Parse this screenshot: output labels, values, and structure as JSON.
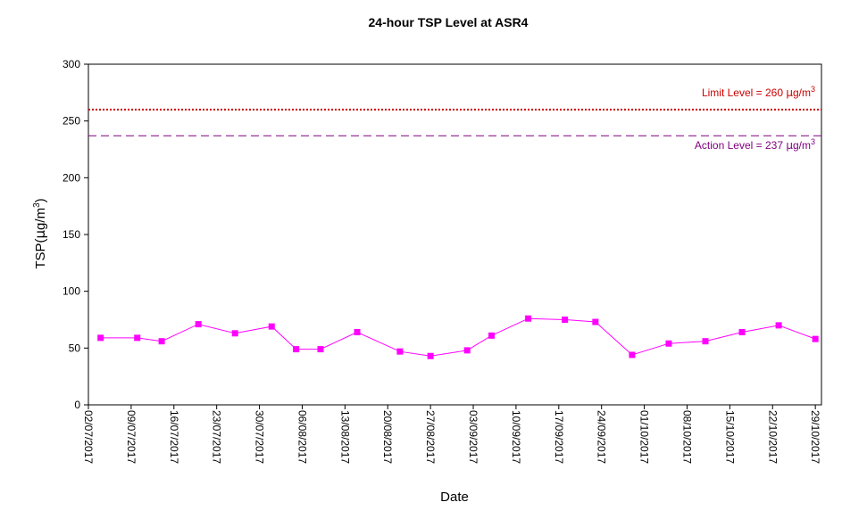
{
  "chart_data": {
    "type": "line",
    "title": "24-hour TSP Level at ASR4",
    "xlabel": "Date",
    "ylabel_main": "TSP(",
    "ylabel_mu": "μ",
    "ylabel_unit": "g/m",
    "ylabel_sup": "3",
    "ylabel_close": ")",
    "ylim": [
      0,
      300
    ],
    "yticks": [
      0,
      50,
      100,
      150,
      200,
      250,
      300
    ],
    "xlim": [
      "2017-07-02",
      "2017-10-30"
    ],
    "xtick_labels": [
      "02/07/2017",
      "09/07/2017",
      "16/07/2017",
      "23/07/2017",
      "30/07/2017",
      "06/08/2017",
      "13/08/2017",
      "20/08/2017",
      "27/08/2017",
      "03/09/2017",
      "10/09/2017",
      "17/09/2017",
      "24/09/2017",
      "01/10/2017",
      "08/10/2017",
      "15/10/2017",
      "22/10/2017",
      "29/10/2017"
    ],
    "xtick_dates": [
      "2017-07-02",
      "2017-07-09",
      "2017-07-16",
      "2017-07-23",
      "2017-07-30",
      "2017-08-06",
      "2017-08-13",
      "2017-08-20",
      "2017-08-27",
      "2017-09-03",
      "2017-09-10",
      "2017-09-17",
      "2017-09-24",
      "2017-10-01",
      "2017-10-08",
      "2017-10-15",
      "2017-10-22",
      "2017-10-29"
    ],
    "grid": false,
    "series": [
      {
        "color": "#ff00ff",
        "marker": "square",
        "x": [
          "2017-07-04",
          "2017-07-10",
          "2017-07-14",
          "2017-07-20",
          "2017-07-26",
          "2017-08-01",
          "2017-08-05",
          "2017-08-09",
          "2017-08-15",
          "2017-08-22",
          "2017-08-27",
          "2017-09-02",
          "2017-09-06",
          "2017-09-12",
          "2017-09-18",
          "2017-09-23",
          "2017-09-29",
          "2017-10-05",
          "2017-10-11",
          "2017-10-17",
          "2017-10-23",
          "2017-10-29"
        ],
        "y": [
          59,
          59,
          56,
          71,
          63,
          69,
          49,
          49,
          64,
          47,
          43,
          48,
          61,
          76,
          75,
          73,
          44,
          54,
          56,
          64,
          70,
          58
        ]
      }
    ],
    "reference_lines": [
      {
        "label_prefix": "Limit Level = 260 ",
        "label_mu": "μ",
        "label_unit": "g/m",
        "label_sup": "3",
        "y": 260,
        "color": "#cc0000",
        "style": "dotted"
      },
      {
        "label_prefix": "Action Level = 237 ",
        "label_mu": "μ",
        "label_unit": "g/m",
        "label_sup": "3",
        "y": 237,
        "color": "#800080",
        "style": "dashed"
      }
    ]
  }
}
